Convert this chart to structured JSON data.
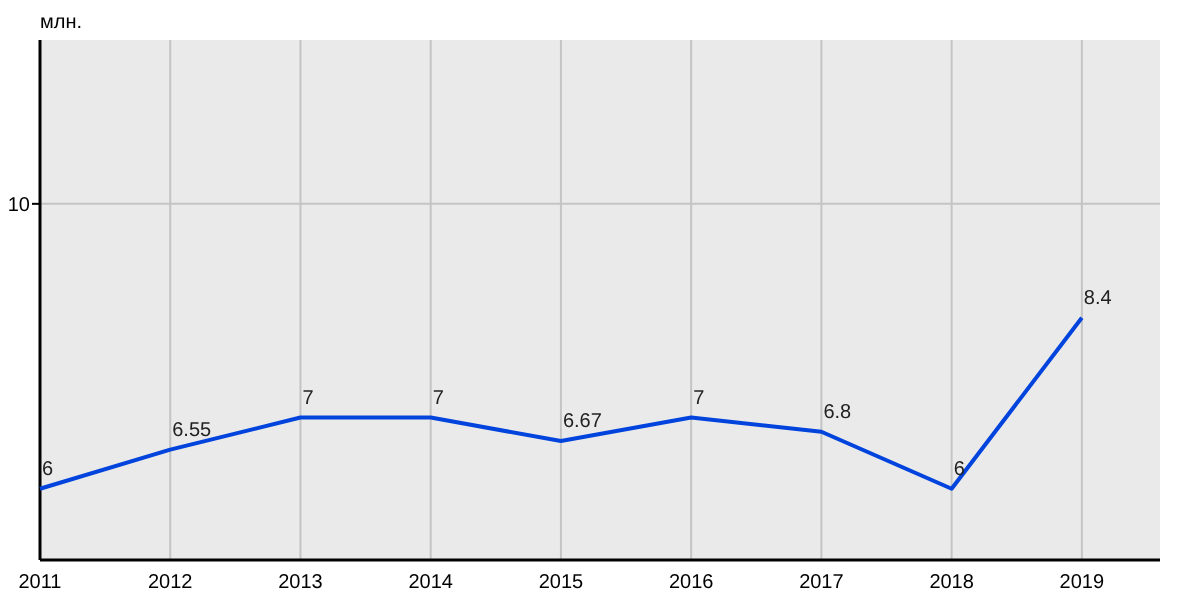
{
  "chart_data": {
    "type": "line",
    "ylabel": "млн.",
    "x": [
      2011,
      2012,
      2013,
      2014,
      2015,
      2016,
      2017,
      2018,
      2019
    ],
    "series": [
      {
        "color": "#0044dd",
        "values": [
          6,
          6.55,
          7,
          7,
          6.67,
          7,
          6.8,
          6,
          8.4
        ]
      }
    ],
    "xlim": [
      2011,
      2019.6
    ],
    "xticks": [
      2011,
      2012,
      2013,
      2014,
      2015,
      2016,
      2017,
      2018,
      2019
    ],
    "ylim": [
      5,
      12.3
    ],
    "ref_lines": [
      {
        "axis": "y",
        "value": 10,
        "label": "10",
        "color": "#c4c4c4"
      }
    ],
    "grid": "x",
    "data_labels": true,
    "marker": "none",
    "line_style": "solid"
  }
}
